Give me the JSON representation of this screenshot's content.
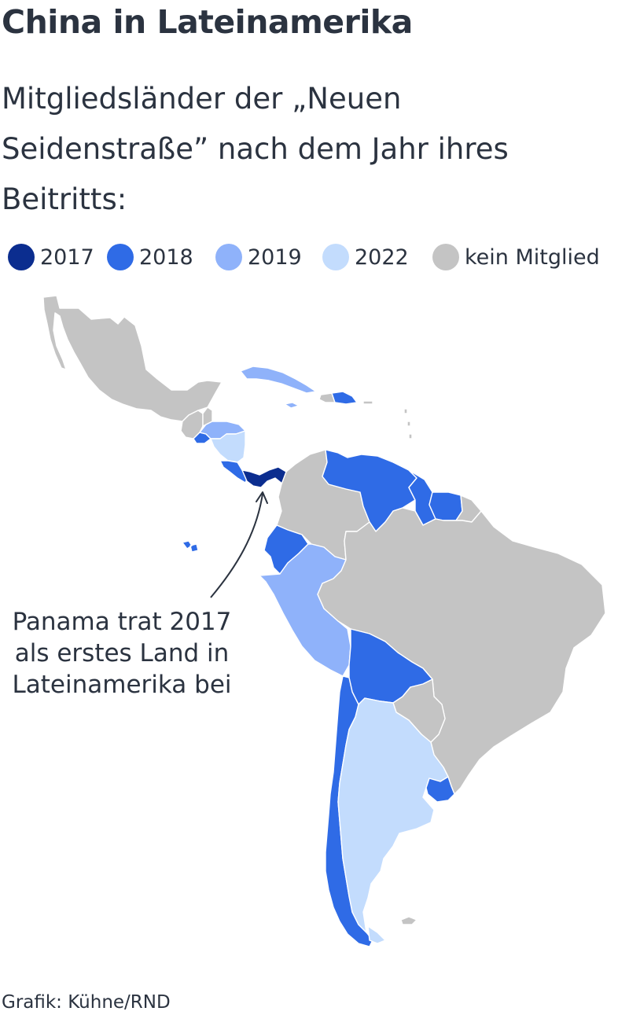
{
  "title": "China in Lateinamerika",
  "subtitle": "Mitgliedsländer der „Neuen Seidenstraße” nach dem Jahr ihres Beitritts:",
  "legend": [
    {
      "label": "2017",
      "color": "#0b2d8f"
    },
    {
      "label": "2018",
      "color": "#2f6be6"
    },
    {
      "label": "2019",
      "color": "#8fb2fa"
    },
    {
      "label": "2022",
      "color": "#c3dcfd"
    },
    {
      "label": "kein Mitglied",
      "color": "#c4c4c4"
    }
  ],
  "map": {
    "countries": [
      {
        "name": "Mexiko",
        "category": "kein Mitglied"
      },
      {
        "name": "Guatemala",
        "category": "kein Mitglied"
      },
      {
        "name": "Belize",
        "category": "kein Mitglied"
      },
      {
        "name": "El Salvador",
        "category": "2018"
      },
      {
        "name": "Honduras",
        "category": "2019"
      },
      {
        "name": "Nicaragua",
        "category": "2022"
      },
      {
        "name": "Costa Rica",
        "category": "2018"
      },
      {
        "name": "Panama",
        "category": "2017"
      },
      {
        "name": "Kuba",
        "category": "2019"
      },
      {
        "name": "Jamaika",
        "category": "2019"
      },
      {
        "name": "Haiti",
        "category": "kein Mitglied"
      },
      {
        "name": "Dominikanische Republik",
        "category": "2018"
      },
      {
        "name": "Kolumbien",
        "category": "kein Mitglied"
      },
      {
        "name": "Venezuela",
        "category": "2018"
      },
      {
        "name": "Guyana",
        "category": "2018"
      },
      {
        "name": "Suriname",
        "category": "2018"
      },
      {
        "name": "Französisch-Guayana",
        "category": "kein Mitglied"
      },
      {
        "name": "Ecuador",
        "category": "2018"
      },
      {
        "name": "Galápagos-Inseln",
        "category": "2018"
      },
      {
        "name": "Peru",
        "category": "2019"
      },
      {
        "name": "Brasilien",
        "category": "kein Mitglied"
      },
      {
        "name": "Bolivien",
        "category": "2018"
      },
      {
        "name": "Paraguay",
        "category": "kein Mitglied"
      },
      {
        "name": "Chile",
        "category": "2018"
      },
      {
        "name": "Argentinien",
        "category": "2022"
      },
      {
        "name": "Uruguay",
        "category": "2018"
      },
      {
        "name": "Falklandinseln",
        "category": "kein Mitglied"
      }
    ]
  },
  "annotation": "Panama trat 2017 als erstes Land in Lateinamerika bei",
  "source": "Grafik: Kühne/RND"
}
